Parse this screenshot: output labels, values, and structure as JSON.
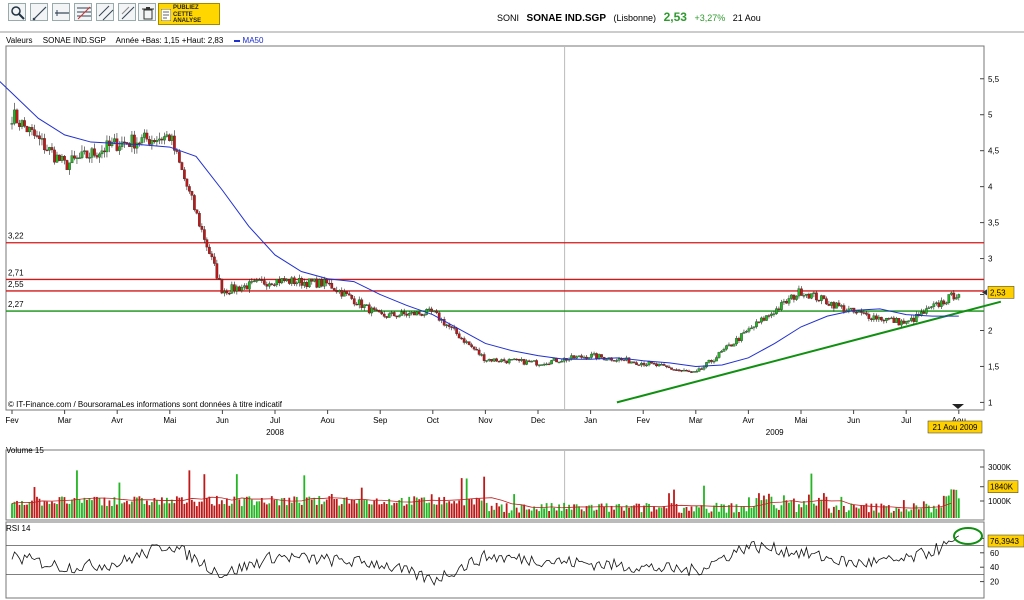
{
  "toolbar": {
    "tools": [
      {
        "name": "zoom-icon"
      },
      {
        "name": "trendline-icon"
      },
      {
        "name": "horizontal-line-icon"
      },
      {
        "name": "fibonacci-icon"
      },
      {
        "name": "channel-icon"
      },
      {
        "name": "parallel-icon"
      },
      {
        "name": "trash-icon"
      }
    ],
    "ad_label": "PUBLIEZ CETTE ANALYSE"
  },
  "quote": {
    "ticker": "SONI",
    "name": "SONAE IND.SGP",
    "exchange": "(Lisbonne)",
    "price": "2,53",
    "change": "+3,27%",
    "date": "21 Aou"
  },
  "header": {
    "label": "Valeurs",
    "instrument": "SONAE IND.SGP",
    "range": "Année +Bas: 1,15 +Haut: 2,83",
    "ma_label": "MA50"
  },
  "credit": "© IT-Finance.com / BoursoramaLes informations sont données à titre indicatif",
  "colors": {
    "up": "#23b523",
    "down": "#c01818",
    "ma": "#2030d0",
    "support": "#109010",
    "resistance": "#d01818",
    "tag": "#ffd000"
  },
  "chart_data": [
    {
      "type": "line",
      "subtype": "candlestick",
      "title": "SONAE IND.SGP",
      "x_ticks": [
        "Fev",
        "Mar",
        "Avr",
        "Mai",
        "Jun",
        "Jul",
        "Aou",
        "Sep",
        "Oct",
        "Nov",
        "Dec",
        "Jan",
        "Fev",
        "Mar",
        "Avr",
        "Mai",
        "Jun",
        "Jul",
        "Aou"
      ],
      "year_labels": [
        "2008",
        "2009"
      ],
      "y_ticks": [
        "5,5",
        "5",
        "4,5",
        "4",
        "3,5",
        "3",
        "2,5",
        "2",
        "1,5",
        "1"
      ],
      "ylim": [
        0.95,
        5.9
      ],
      "grid": false,
      "x": [
        0,
        1,
        2,
        3,
        4,
        5,
        6,
        7,
        8,
        9,
        10,
        11,
        12,
        13,
        14,
        15,
        16,
        17,
        18
      ],
      "close": [
        5.0,
        4.3,
        4.6,
        4.7,
        2.55,
        2.7,
        2.65,
        2.2,
        2.25,
        1.6,
        1.55,
        1.65,
        1.55,
        1.4,
        2.0,
        2.55,
        2.25,
        2.1,
        2.53
      ],
      "series": [
        {
          "name": "MA50",
          "x": [
            -0.5,
            0,
            0.5,
            1,
            1.5,
            2,
            2.5,
            3,
            3.5,
            4,
            4.5,
            5,
            5.5,
            6,
            6.5,
            7,
            7.5,
            8,
            8.5,
            9,
            9.5,
            10,
            10.5,
            11,
            11.5,
            12,
            12.5,
            13,
            13.5,
            14,
            14.5,
            15,
            15.5,
            16,
            16.5,
            17,
            17.5,
            18
          ],
          "values": [
            5.65,
            5.3,
            4.95,
            4.72,
            4.62,
            4.6,
            4.58,
            4.55,
            4.42,
            3.95,
            3.45,
            3.05,
            2.82,
            2.72,
            2.68,
            2.5,
            2.35,
            2.22,
            2.02,
            1.82,
            1.72,
            1.65,
            1.6,
            1.6,
            1.62,
            1.58,
            1.55,
            1.5,
            1.52,
            1.62,
            1.82,
            2.05,
            2.2,
            2.28,
            2.3,
            2.22,
            2.2,
            2.2
          ]
        }
      ],
      "horizontal_lines": [
        {
          "value": 3.22,
          "label": "3,22",
          "color": "red"
        },
        {
          "value": 2.71,
          "label": "2,71",
          "color": "red"
        },
        {
          "value": 2.55,
          "label": "2,55",
          "color": "red"
        },
        {
          "value": 2.27,
          "label": "2,27",
          "color": "green"
        }
      ],
      "trendline": {
        "from": {
          "x": 11.5,
          "y": 1.0
        },
        "to": {
          "x": 18.8,
          "y": 2.4
        }
      },
      "last_value_label": "2,53",
      "date_tag": "21 Aou 2009"
    },
    {
      "type": "bar",
      "title": "Volume 15",
      "y_ticks": [
        "3000K",
        "1840K",
        "1000K"
      ],
      "ylim": [
        0,
        4000
      ],
      "last_value_label": "1840K",
      "series": [
        {
          "name": "Volume 15"
        }
      ]
    },
    {
      "type": "line",
      "title": "RSI 14",
      "y_ticks": [
        "80",
        "60",
        "40",
        "20"
      ],
      "ylim": [
        0,
        100
      ],
      "levels": [
        70,
        30
      ],
      "last_value_label": "76,3943",
      "x": [
        0,
        1,
        2,
        3,
        4,
        5,
        6,
        7,
        8,
        9,
        10,
        11,
        12,
        13,
        14,
        15,
        16,
        17,
        18
      ],
      "values": [
        55,
        40,
        45,
        72,
        30,
        55,
        50,
        45,
        22,
        55,
        50,
        45,
        40,
        35,
        70,
        60,
        45,
        50,
        76
      ],
      "series": [
        {
          "name": "RSI 14"
        }
      ]
    }
  ]
}
